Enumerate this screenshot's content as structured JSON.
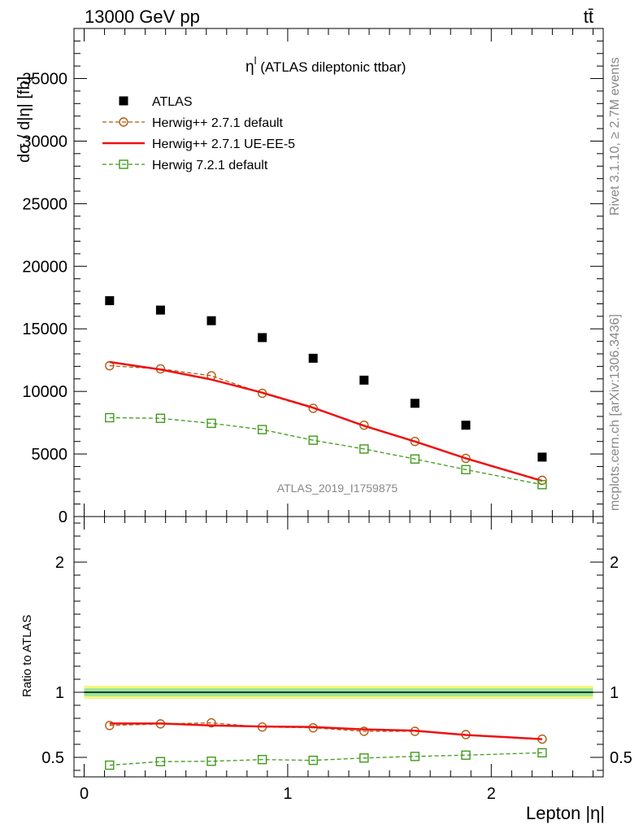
{
  "header": {
    "left": "13000 GeV pp",
    "right": "tt̄"
  },
  "side_labels": {
    "rivet": "Rivet 3.1.10, ≥ 2.7M events",
    "mcplots": "mcplots.cern.ch [arXiv:1306.3436]"
  },
  "watermark": "ATLAS_2019_I1759875",
  "colors": {
    "atlas": "#000000",
    "herwigpp_default": "#b25b10",
    "herwigpp_ueee5": "#ee1111",
    "herwig7": "#3f9a1b",
    "band_outer": "#f4f77a",
    "band_inner": "#99e5a0"
  },
  "chart_data": [
    {
      "type": "scatter",
      "panel": "main",
      "title": "η^l (ATLAS dileptonic ttbar)",
      "title_main": "η",
      "title_sup": "l",
      "title_rest": " (ATLAS dileptonic ttbar)",
      "ylabel": "dσ / d|η| [fb]",
      "xlabel": "",
      "xlim": [
        -0.05,
        2.55
      ],
      "ylim": [
        0,
        39000
      ],
      "y_ticks": [
        {
          "v": 0,
          "label": "0"
        },
        {
          "v": 5000,
          "label": "5000"
        },
        {
          "v": 10000,
          "label": "10000"
        },
        {
          "v": 15000,
          "label": "15000"
        },
        {
          "v": 20000,
          "label": "20000"
        },
        {
          "v": 25000,
          "label": "25000"
        },
        {
          "v": 30000,
          "label": "30000"
        },
        {
          "v": 35000,
          "label": "35000"
        }
      ],
      "legend_position": "top-left",
      "x": [
        0.125,
        0.375,
        0.625,
        0.875,
        1.125,
        1.375,
        1.625,
        1.875,
        2.25
      ],
      "series": [
        {
          "name": "ATLAS",
          "marker": "filled-square",
          "values": [
            17250,
            16500,
            15650,
            14300,
            12650,
            10900,
            9050,
            7300,
            4750
          ]
        },
        {
          "name": "Herwig++ 2.7.1 default",
          "marker": "open-circle",
          "line": "dashed",
          "values": [
            12050,
            11800,
            11250,
            9850,
            8650,
            7300,
            6000,
            4650,
            2900
          ]
        },
        {
          "name": "Herwig++ 2.7.1 UE-EE-5",
          "marker": "none",
          "line": "solid",
          "values": [
            12350,
            11750,
            10950,
            9900,
            8700,
            7250,
            6000,
            4650,
            2850
          ]
        },
        {
          "name": "Herwig 7.2.1 default",
          "marker": "open-square",
          "line": "dashed",
          "values": [
            7900,
            7850,
            7450,
            6950,
            6100,
            5400,
            4600,
            3750,
            2550
          ]
        }
      ]
    },
    {
      "type": "line",
      "panel": "ratio",
      "ylabel": "Ratio to ATLAS",
      "xlabel": "Lepton |η|",
      "xlim": [
        -0.05,
        2.55
      ],
      "ylim": [
        0.35,
        2.35
      ],
      "y_ticks": [
        {
          "v": 0.5,
          "label": "0.5"
        },
        {
          "v": 1,
          "label": "1"
        },
        {
          "v": 2,
          "label": "2"
        }
      ],
      "x_ticks": [
        {
          "v": 0,
          "label": "0"
        },
        {
          "v": 1,
          "label": "1"
        },
        {
          "v": 2,
          "label": "2"
        }
      ],
      "reference_line": 1,
      "band_outer": [
        0.95,
        1.05
      ],
      "band_inner": [
        0.97,
        1.03
      ],
      "x": [
        0.125,
        0.375,
        0.625,
        0.875,
        1.125,
        1.375,
        1.625,
        1.875,
        2.25
      ],
      "series": [
        {
          "name": "Herwig++ 2.7.1 default",
          "values": [
            0.745,
            0.757,
            0.765,
            0.733,
            0.727,
            0.7,
            0.7,
            0.675,
            0.64
          ]
        },
        {
          "name": "Herwig++ 2.7.1 UE-EE-5",
          "values": [
            0.76,
            0.76,
            0.745,
            0.737,
            0.733,
            0.715,
            0.705,
            0.672,
            0.64
          ]
        },
        {
          "name": "Herwig 7.2.1 default",
          "values": [
            0.44,
            0.467,
            0.47,
            0.483,
            0.477,
            0.495,
            0.507,
            0.517,
            0.535
          ]
        }
      ]
    }
  ]
}
